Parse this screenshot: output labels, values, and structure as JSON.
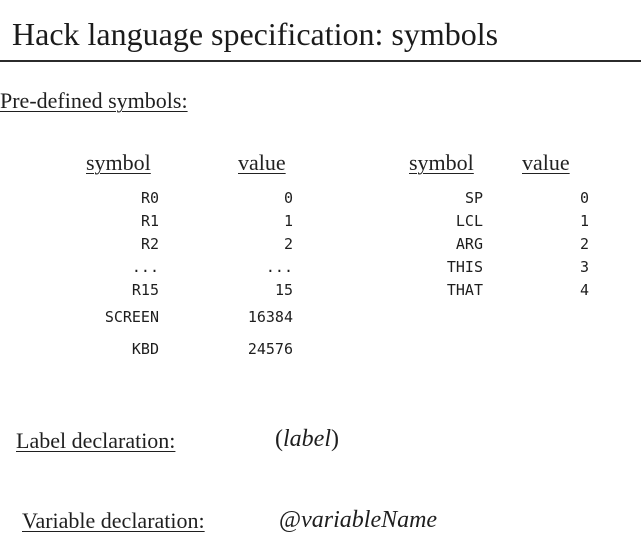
{
  "slide": {
    "title": "Hack language specification: symbols"
  },
  "predefined": {
    "heading": "Pre-defined symbols:",
    "left_table": {
      "symbol_header": "symbol",
      "value_header": "value",
      "rows": [
        {
          "symbol": "R0",
          "value": "0"
        },
        {
          "symbol": "R1",
          "value": "1"
        },
        {
          "symbol": "R2",
          "value": "2"
        },
        {
          "symbol": "...",
          "value": "..."
        },
        {
          "symbol": "R15",
          "value": "15"
        },
        {
          "symbol": "SCREEN",
          "value": "16384"
        },
        {
          "symbol": "KBD",
          "value": "24576"
        }
      ]
    },
    "right_table": {
      "symbol_header": "symbol",
      "value_header": "value",
      "rows": [
        {
          "symbol": "SP",
          "value": "0"
        },
        {
          "symbol": "LCL",
          "value": "1"
        },
        {
          "symbol": "ARG",
          "value": "2"
        },
        {
          "symbol": "THIS",
          "value": "3"
        },
        {
          "symbol": "THAT",
          "value": "4"
        }
      ]
    }
  },
  "label_declaration": {
    "label": "Label declaration:",
    "open_paren": "(",
    "name": "label",
    "close_paren": ")"
  },
  "variable_declaration": {
    "label": "Variable declaration:",
    "at": "@",
    "name": "variableName"
  }
}
